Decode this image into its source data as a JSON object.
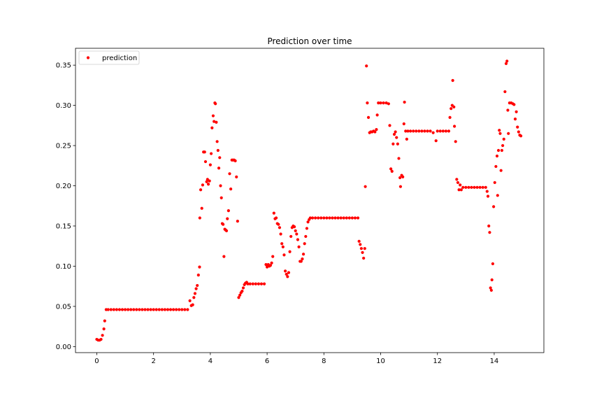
{
  "chart_data": {
    "type": "scatter",
    "title": "Prediction over time",
    "xlabel": "",
    "ylabel": "",
    "xlim": [
      -0.75,
      15.75
    ],
    "ylim": [
      -0.0075,
      0.371
    ],
    "x_ticks": [
      0,
      2,
      4,
      6,
      8,
      10,
      12,
      14
    ],
    "y_ticks": [
      0.0,
      0.05,
      0.1,
      0.15,
      0.2,
      0.25,
      0.3,
      0.35
    ],
    "y_tick_labels": [
      "0.00",
      "0.05",
      "0.10",
      "0.15",
      "0.20",
      "0.25",
      "0.30",
      "0.35"
    ],
    "grid": false,
    "legend": {
      "position": "top-left",
      "entries": [
        "prediction"
      ]
    },
    "marker_color": "#ff0000",
    "series": [
      {
        "name": "prediction",
        "points": [
          [
            0.0,
            0.009
          ],
          [
            0.05,
            0.008
          ],
          [
            0.1,
            0.008
          ],
          [
            0.15,
            0.009
          ],
          [
            0.2,
            0.014
          ],
          [
            0.25,
            0.022
          ],
          [
            0.28,
            0.032
          ],
          [
            0.33,
            0.046
          ],
          [
            0.4,
            0.046
          ],
          [
            0.5,
            0.046
          ],
          [
            0.6,
            0.046
          ],
          [
            0.7,
            0.046
          ],
          [
            0.8,
            0.046
          ],
          [
            0.9,
            0.046
          ],
          [
            1.0,
            0.046
          ],
          [
            1.1,
            0.046
          ],
          [
            1.2,
            0.046
          ],
          [
            1.3,
            0.046
          ],
          [
            1.4,
            0.046
          ],
          [
            1.5,
            0.046
          ],
          [
            1.6,
            0.046
          ],
          [
            1.7,
            0.046
          ],
          [
            1.8,
            0.046
          ],
          [
            1.9,
            0.046
          ],
          [
            2.0,
            0.046
          ],
          [
            2.1,
            0.046
          ],
          [
            2.2,
            0.046
          ],
          [
            2.3,
            0.046
          ],
          [
            2.4,
            0.046
          ],
          [
            2.5,
            0.046
          ],
          [
            2.6,
            0.046
          ],
          [
            2.7,
            0.046
          ],
          [
            2.8,
            0.046
          ],
          [
            2.9,
            0.046
          ],
          [
            3.0,
            0.046
          ],
          [
            3.1,
            0.046
          ],
          [
            3.2,
            0.046
          ],
          [
            3.28,
            0.057
          ],
          [
            3.33,
            0.051
          ],
          [
            3.38,
            0.052
          ],
          [
            3.42,
            0.061
          ],
          [
            3.46,
            0.066
          ],
          [
            3.5,
            0.072
          ],
          [
            3.54,
            0.076
          ],
          [
            3.58,
            0.089
          ],
          [
            3.62,
            0.099
          ],
          [
            3.63,
            0.16
          ],
          [
            3.66,
            0.195
          ],
          [
            3.7,
            0.172
          ],
          [
            3.73,
            0.201
          ],
          [
            3.76,
            0.242
          ],
          [
            3.8,
            0.242
          ],
          [
            3.83,
            0.23
          ],
          [
            3.87,
            0.205
          ],
          [
            3.9,
            0.208
          ],
          [
            3.93,
            0.202
          ],
          [
            3.97,
            0.206
          ],
          [
            4.0,
            0.226
          ],
          [
            4.03,
            0.24
          ],
          [
            4.06,
            0.272
          ],
          [
            4.1,
            0.287
          ],
          [
            4.13,
            0.28
          ],
          [
            4.16,
            0.303
          ],
          [
            4.18,
            0.302
          ],
          [
            4.21,
            0.279
          ],
          [
            4.24,
            0.255
          ],
          [
            4.27,
            0.244
          ],
          [
            4.3,
            0.222
          ],
          [
            4.33,
            0.235
          ],
          [
            4.36,
            0.2
          ],
          [
            4.39,
            0.185
          ],
          [
            4.42,
            0.153
          ],
          [
            4.45,
            0.152
          ],
          [
            4.48,
            0.112
          ],
          [
            4.51,
            0.146
          ],
          [
            4.54,
            0.145
          ],
          [
            4.57,
            0.144
          ],
          [
            4.6,
            0.159
          ],
          [
            4.64,
            0.169
          ],
          [
            4.68,
            0.215
          ],
          [
            4.72,
            0.196
          ],
          [
            4.76,
            0.232
          ],
          [
            4.8,
            0.232
          ],
          [
            4.84,
            0.232
          ],
          [
            4.88,
            0.231
          ],
          [
            4.92,
            0.211
          ],
          [
            4.96,
            0.156
          ],
          [
            5.0,
            0.061
          ],
          [
            5.04,
            0.064
          ],
          [
            5.08,
            0.067
          ],
          [
            5.12,
            0.069
          ],
          [
            5.16,
            0.073
          ],
          [
            5.2,
            0.077
          ],
          [
            5.24,
            0.079
          ],
          [
            5.28,
            0.08
          ],
          [
            5.32,
            0.078
          ],
          [
            5.4,
            0.078
          ],
          [
            5.5,
            0.078
          ],
          [
            5.6,
            0.078
          ],
          [
            5.7,
            0.078
          ],
          [
            5.8,
            0.078
          ],
          [
            5.9,
            0.078
          ],
          [
            5.96,
            0.102
          ],
          [
            6.0,
            0.099
          ],
          [
            6.04,
            0.102
          ],
          [
            6.08,
            0.1
          ],
          [
            6.12,
            0.101
          ],
          [
            6.16,
            0.104
          ],
          [
            6.2,
            0.112
          ],
          [
            6.24,
            0.166
          ],
          [
            6.28,
            0.159
          ],
          [
            6.32,
            0.16
          ],
          [
            6.36,
            0.153
          ],
          [
            6.4,
            0.152
          ],
          [
            6.44,
            0.148
          ],
          [
            6.48,
            0.14
          ],
          [
            6.52,
            0.128
          ],
          [
            6.56,
            0.124
          ],
          [
            6.6,
            0.114
          ],
          [
            6.64,
            0.094
          ],
          [
            6.68,
            0.09
          ],
          [
            6.72,
            0.087
          ],
          [
            6.76,
            0.092
          ],
          [
            6.8,
            0.118
          ],
          [
            6.84,
            0.137
          ],
          [
            6.88,
            0.148
          ],
          [
            6.92,
            0.15
          ],
          [
            6.96,
            0.149
          ],
          [
            7.0,
            0.144
          ],
          [
            7.04,
            0.14
          ],
          [
            7.08,
            0.133
          ],
          [
            7.12,
            0.124
          ],
          [
            7.16,
            0.106
          ],
          [
            7.2,
            0.106
          ],
          [
            7.24,
            0.109
          ],
          [
            7.28,
            0.115
          ],
          [
            7.32,
            0.128
          ],
          [
            7.36,
            0.137
          ],
          [
            7.4,
            0.147
          ],
          [
            7.44,
            0.155
          ],
          [
            7.48,
            0.158
          ],
          [
            7.52,
            0.16
          ],
          [
            7.6,
            0.16
          ],
          [
            7.7,
            0.16
          ],
          [
            7.8,
            0.16
          ],
          [
            7.9,
            0.16
          ],
          [
            8.0,
            0.16
          ],
          [
            8.1,
            0.16
          ],
          [
            8.2,
            0.16
          ],
          [
            8.3,
            0.16
          ],
          [
            8.4,
            0.16
          ],
          [
            8.5,
            0.16
          ],
          [
            8.6,
            0.16
          ],
          [
            8.7,
            0.16
          ],
          [
            8.8,
            0.16
          ],
          [
            8.9,
            0.16
          ],
          [
            9.0,
            0.16
          ],
          [
            9.1,
            0.16
          ],
          [
            9.2,
            0.16
          ],
          [
            9.24,
            0.131
          ],
          [
            9.28,
            0.127
          ],
          [
            9.32,
            0.122
          ],
          [
            9.36,
            0.117
          ],
          [
            9.4,
            0.11
          ],
          [
            9.44,
            0.122
          ],
          [
            9.46,
            0.199
          ],
          [
            9.5,
            0.349
          ],
          [
            9.53,
            0.303
          ],
          [
            9.57,
            0.285
          ],
          [
            9.61,
            0.266
          ],
          [
            9.65,
            0.267
          ],
          [
            9.7,
            0.267
          ],
          [
            9.75,
            0.268
          ],
          [
            9.8,
            0.267
          ],
          [
            9.85,
            0.27
          ],
          [
            9.88,
            0.288
          ],
          [
            9.92,
            0.303
          ],
          [
            10.0,
            0.303
          ],
          [
            10.1,
            0.303
          ],
          [
            10.2,
            0.303
          ],
          [
            10.28,
            0.302
          ],
          [
            10.32,
            0.275
          ],
          [
            10.36,
            0.221
          ],
          [
            10.4,
            0.218
          ],
          [
            10.44,
            0.252
          ],
          [
            10.48,
            0.264
          ],
          [
            10.52,
            0.267
          ],
          [
            10.56,
            0.26
          ],
          [
            10.6,
            0.252
          ],
          [
            10.64,
            0.234
          ],
          [
            10.68,
            0.21
          ],
          [
            10.7,
            0.199
          ],
          [
            10.74,
            0.213
          ],
          [
            10.78,
            0.211
          ],
          [
            10.82,
            0.277
          ],
          [
            10.84,
            0.304
          ],
          [
            10.88,
            0.268
          ],
          [
            10.92,
            0.258
          ],
          [
            10.96,
            0.268
          ],
          [
            11.05,
            0.268
          ],
          [
            11.15,
            0.268
          ],
          [
            11.25,
            0.268
          ],
          [
            11.35,
            0.268
          ],
          [
            11.45,
            0.268
          ],
          [
            11.55,
            0.268
          ],
          [
            11.65,
            0.268
          ],
          [
            11.75,
            0.268
          ],
          [
            11.85,
            0.266
          ],
          [
            11.95,
            0.256
          ],
          [
            12.0,
            0.268
          ],
          [
            12.1,
            0.268
          ],
          [
            12.2,
            0.268
          ],
          [
            12.3,
            0.268
          ],
          [
            12.4,
            0.268
          ],
          [
            12.44,
            0.285
          ],
          [
            12.48,
            0.296
          ],
          [
            12.52,
            0.3
          ],
          [
            12.54,
            0.331
          ],
          [
            12.58,
            0.298
          ],
          [
            12.6,
            0.274
          ],
          [
            12.64,
            0.255
          ],
          [
            12.68,
            0.208
          ],
          [
            12.72,
            0.204
          ],
          [
            12.76,
            0.195
          ],
          [
            12.8,
            0.201
          ],
          [
            12.84,
            0.195
          ],
          [
            12.9,
            0.198
          ],
          [
            13.0,
            0.198
          ],
          [
            13.1,
            0.198
          ],
          [
            13.2,
            0.198
          ],
          [
            13.3,
            0.198
          ],
          [
            13.4,
            0.198
          ],
          [
            13.5,
            0.198
          ],
          [
            13.6,
            0.198
          ],
          [
            13.7,
            0.198
          ],
          [
            13.75,
            0.193
          ],
          [
            13.78,
            0.187
          ],
          [
            13.81,
            0.15
          ],
          [
            13.84,
            0.142
          ],
          [
            13.87,
            0.073
          ],
          [
            13.9,
            0.07
          ],
          [
            13.92,
            0.083
          ],
          [
            13.95,
            0.103
          ],
          [
            13.98,
            0.174
          ],
          [
            14.02,
            0.204
          ],
          [
            14.06,
            0.224
          ],
          [
            14.1,
            0.237
          ],
          [
            14.12,
            0.188
          ],
          [
            14.15,
            0.244
          ],
          [
            14.18,
            0.269
          ],
          [
            14.21,
            0.265
          ],
          [
            14.24,
            0.219
          ],
          [
            14.27,
            0.244
          ],
          [
            14.3,
            0.25
          ],
          [
            14.34,
            0.258
          ],
          [
            14.38,
            0.317
          ],
          [
            14.42,
            0.352
          ],
          [
            14.45,
            0.355
          ],
          [
            14.48,
            0.294
          ],
          [
            14.5,
            0.265
          ],
          [
            14.54,
            0.303
          ],
          [
            14.6,
            0.303
          ],
          [
            14.66,
            0.302
          ],
          [
            14.7,
            0.301
          ],
          [
            14.74,
            0.283
          ],
          [
            14.78,
            0.292
          ],
          [
            14.82,
            0.273
          ],
          [
            14.86,
            0.267
          ],
          [
            14.9,
            0.263
          ],
          [
            14.94,
            0.262
          ]
        ]
      }
    ]
  }
}
